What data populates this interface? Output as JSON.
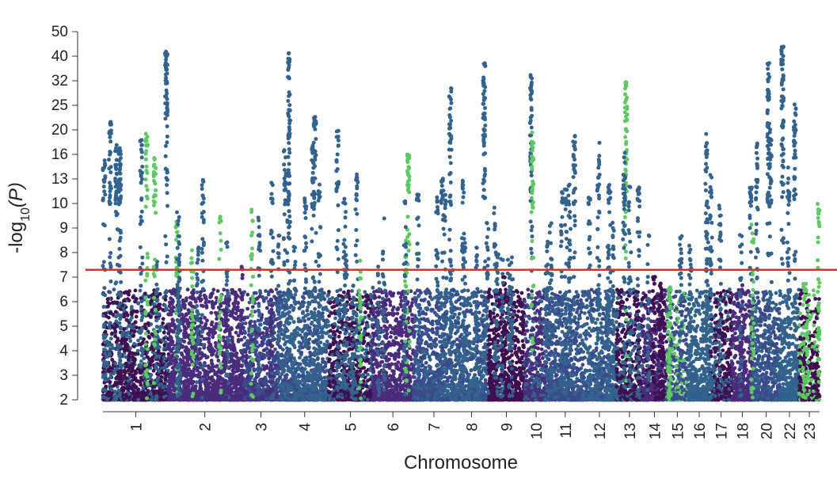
{
  "chart_data": {
    "type": "scatter",
    "title": "",
    "xlabel": "Chromosome",
    "ylabel_parts": {
      "prefix": "-log",
      "subscript": "10",
      "suffix": "(P)"
    },
    "y_ticks": [
      "2",
      "3",
      "4",
      "5",
      "6",
      "7",
      "8",
      "9",
      "10",
      "13",
      "16",
      "20",
      "25",
      "32",
      "40",
      "50"
    ],
    "y_tick_values": [
      2,
      3,
      4,
      5,
      6,
      7,
      8,
      9,
      10,
      13,
      16,
      20,
      25,
      32,
      40,
      50
    ],
    "y_scale": "piecewise-compressed",
    "ylim": [
      2,
      50
    ],
    "grid": false,
    "legend": "none",
    "significance_line": {
      "value": 7.3,
      "color": "#e0302a"
    },
    "colors": {
      "dark_purple": "#3f0f52",
      "purple": "#4a2c7d",
      "indigo": "#3b4a8c",
      "blue": "#33638d",
      "green": "#5ec962"
    },
    "chromosomes": [
      {
        "label": "1",
        "pos": 0.0,
        "width": 0.096,
        "peak": 42,
        "color": "blue"
      },
      {
        "label": "2",
        "pos": 0.096,
        "width": 0.106,
        "peak": 13,
        "color": "purple"
      },
      {
        "label": "3",
        "pos": 0.202,
        "width": 0.058,
        "peak": 13,
        "color": "purple"
      },
      {
        "label": "4",
        "pos": 0.26,
        "width": 0.07,
        "peak": 42,
        "color": "indigo"
      },
      {
        "label": "5",
        "pos": 0.33,
        "width": 0.064,
        "peak": 20,
        "color": "blue"
      },
      {
        "label": "6",
        "pos": 0.394,
        "width": 0.06,
        "peak": 16,
        "color": "purple"
      },
      {
        "label": "7",
        "pos": 0.454,
        "width": 0.06,
        "peak": 30,
        "color": "blue"
      },
      {
        "label": "8",
        "pos": 0.514,
        "width": 0.05,
        "peak": 38,
        "color": "indigo"
      },
      {
        "label": "9",
        "pos": 0.564,
        "width": 0.052,
        "peak": 10,
        "color": "dark_purple"
      },
      {
        "label": "10",
        "pos": 0.616,
        "width": 0.035,
        "peak": 34,
        "color": "blue"
      },
      {
        "label": "11",
        "pos": 0.651,
        "width": 0.05,
        "peak": 20,
        "color": "blue"
      },
      {
        "label": "12",
        "pos": 0.701,
        "width": 0.05,
        "peak": 18,
        "color": "indigo"
      },
      {
        "label": "13",
        "pos": 0.751,
        "width": 0.038,
        "peak": 32,
        "color": "blue"
      },
      {
        "label": "14",
        "pos": 0.789,
        "width": 0.035,
        "peak": 9,
        "color": "dark_purple"
      },
      {
        "label": "15",
        "pos": 0.824,
        "width": 0.032,
        "peak": 9,
        "color": "green"
      },
      {
        "label": "16",
        "pos": 0.856,
        "width": 0.032,
        "peak": 20,
        "color": "blue"
      },
      {
        "label": "17",
        "pos": 0.888,
        "width": 0.032,
        "peak": 14,
        "color": "blue"
      },
      {
        "label": "18",
        "pos": 0.92,
        "width": 0.03,
        "peak": 12,
        "color": "purple"
      },
      {
        "label": "20",
        "pos": 0.95,
        "width": 0.04,
        "peak": 38,
        "color": "blue"
      },
      {
        "label": "22",
        "pos": 0.99,
        "width": 0.028,
        "peak": 45,
        "color": "blue"
      },
      {
        "label": "23",
        "pos": 1.018,
        "width": 0.03,
        "peak": 10,
        "color": "green"
      }
    ]
  }
}
